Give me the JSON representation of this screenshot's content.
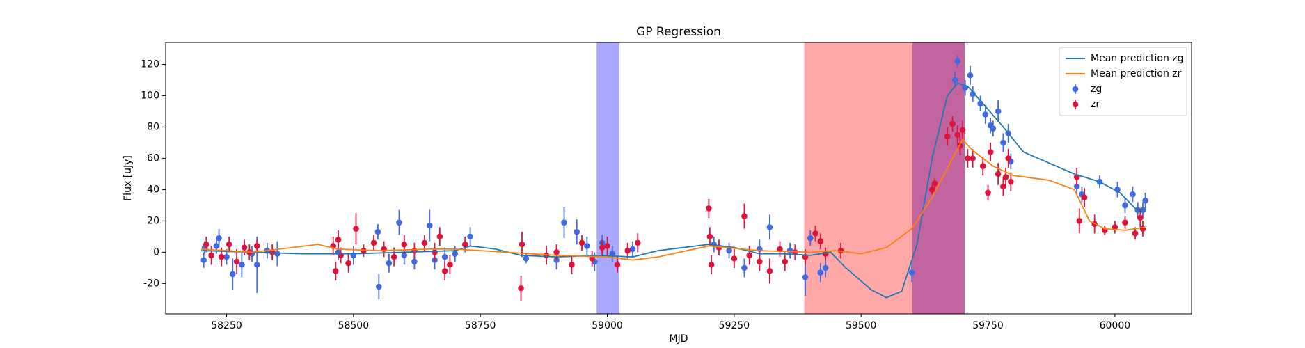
{
  "chart_data": {
    "type": "scatter",
    "title": "GP Regression",
    "x_label": "MJD",
    "y_label": "Flux [uJy]",
    "xlim": [
      58130,
      60151
    ],
    "ylim": [
      -39.4,
      134
    ],
    "xticks": [
      58250,
      58500,
      58750,
      59000,
      59250,
      59500,
      59750,
      60000
    ],
    "yticks": [
      -20,
      0,
      20,
      40,
      60,
      80,
      100,
      120
    ],
    "legend": "upper right",
    "spans": [
      {
        "start": 58979,
        "end": 59024,
        "color": "#a8a8ff"
      },
      {
        "start": 59388,
        "end": 59601,
        "color": "#ffa8a8"
      },
      {
        "start": 59601,
        "end": 59704,
        "color": "#c264a0"
      }
    ],
    "series": [
      {
        "name": "Mean prediction zg",
        "type": "line",
        "color": "#1f77b4",
        "x": [
          58200,
          58300,
          58400,
          58500,
          58600,
          58700,
          58730,
          58780,
          58830,
          58900,
          58980,
          59050,
          59100,
          59200,
          59250,
          59300,
          59350,
          59400,
          59440,
          59470,
          59520,
          59550,
          59580,
          59610,
          59640,
          59670,
          59690,
          59710,
          59740,
          59780,
          59820,
          59870,
          59920,
          59970,
          60010,
          60040,
          60060
        ],
        "values": [
          1,
          0,
          -1,
          -1,
          0,
          1,
          4,
          2,
          -2,
          -3,
          -2,
          -3,
          1,
          5,
          3,
          -1,
          -1,
          -2,
          0,
          -10,
          -24,
          -29,
          -25,
          5,
          60,
          100,
          108,
          106,
          95,
          80,
          64,
          57,
          50,
          45,
          38,
          28,
          26
        ]
      },
      {
        "name": "Mean prediction zr",
        "type": "line",
        "color": "#ff7f0e",
        "x": [
          58200,
          58300,
          58380,
          58430,
          58470,
          58550,
          58650,
          58700,
          58800,
          58900,
          59000,
          59050,
          59100,
          59200,
          59300,
          59400,
          59450,
          59500,
          59550,
          59600,
          59640,
          59680,
          59700,
          59720,
          59760,
          59800,
          59870,
          59920,
          59950,
          59980,
          60020,
          60060
        ],
        "values": [
          2,
          0,
          3,
          5,
          2,
          1,
          2,
          2,
          0,
          -2,
          -3,
          -5,
          -3,
          4,
          1,
          0,
          1,
          -1,
          3,
          15,
          35,
          60,
          72,
          65,
          55,
          49,
          46,
          40,
          20,
          15,
          14,
          16
        ]
      },
      {
        "name": "zg",
        "type": "errorbar",
        "color": "#4169e1",
        "x": [
          58205,
          58207,
          58235,
          58230,
          58250,
          58262,
          58280,
          58300,
          58310,
          58330,
          58350,
          58470,
          58500,
          58550,
          58548,
          58570,
          58590,
          58600,
          58620,
          58650,
          58660,
          58680,
          58700,
          58730,
          58840,
          58880,
          58900,
          58915,
          58940,
          58960,
          58975,
          58990,
          59010,
          59050,
          59210,
          59240,
          59270,
          59300,
          59320,
          59360,
          59390,
          59400,
          59420,
          59430,
          59600,
          59690,
          59685,
          59705,
          59715,
          59720,
          59735,
          59745,
          59755,
          59760,
          59770,
          59780,
          59790,
          59795,
          59925,
          59935,
          59970,
          60005,
          60020,
          60035,
          60045,
          60055,
          60060
        ],
        "values": [
          -5,
          3,
          9,
          4,
          -3,
          -14,
          -8,
          -1,
          -8,
          1,
          -1,
          0,
          -2,
          -22,
          13,
          -7,
          19,
          -2,
          -6,
          17,
          -5,
          -3,
          -1,
          10,
          -4,
          -2,
          -5,
          19,
          13,
          4,
          -6,
          6,
          -1,
          2,
          5,
          1,
          -10,
          2,
          16,
          1,
          -16,
          9,
          -13,
          -10,
          -13,
          122,
          110,
          105,
          113,
          101,
          95,
          88,
          81,
          79,
          90,
          70,
          76,
          58,
          42,
          37,
          45,
          40,
          30,
          37,
          27,
          27,
          33
        ],
        "errors": [
          5,
          4,
          6,
          5,
          5,
          10,
          8,
          5,
          18,
          5,
          8,
          5,
          6,
          8,
          5,
          6,
          8,
          6,
          5,
          10,
          6,
          6,
          5,
          6,
          3,
          6,
          6,
          10,
          8,
          6,
          6,
          5,
          5,
          5,
          5,
          5,
          6,
          6,
          8,
          5,
          12,
          5,
          6,
          6,
          6,
          4,
          5,
          5,
          6,
          5,
          5,
          6,
          5,
          5,
          7,
          6,
          6,
          5,
          5,
          5,
          4,
          5,
          5,
          5,
          5,
          5,
          5
        ]
      },
      {
        "name": "zr",
        "type": "errorbar",
        "color": "#dc143c",
        "x": [
          58210,
          58220,
          58240,
          58255,
          58270,
          58285,
          58295,
          58310,
          58340,
          58460,
          58465,
          58470,
          58475,
          58490,
          58505,
          58520,
          58540,
          58560,
          58580,
          58600,
          58620,
          58640,
          58660,
          58670,
          58680,
          58690,
          58720,
          58830,
          58832,
          58880,
          58900,
          58930,
          58950,
          58970,
          58990,
          59000,
          59020,
          59040,
          59060,
          59200,
          59202,
          59205,
          59220,
          59250,
          59270,
          59280,
          59300,
          59320,
          59340,
          59350,
          59370,
          59390,
          59410,
          59420,
          59430,
          59460,
          59640,
          59645,
          59670,
          59680,
          59690,
          59695,
          59700,
          59710,
          59720,
          59740,
          59750,
          59755,
          59770,
          59780,
          59785,
          59790,
          59795,
          59925,
          59930,
          59940,
          59960,
          59980,
          60000,
          60020,
          60040,
          60050,
          60055
        ],
        "values": [
          5,
          -2,
          -3,
          5,
          -6,
          3,
          0,
          4,
          0,
          4,
          -12,
          8,
          -2,
          -7,
          15,
          1,
          6,
          2,
          -3,
          5,
          1,
          6,
          0,
          10,
          -12,
          -8,
          5,
          -23,
          5,
          -2,
          0,
          -8,
          6,
          -4,
          3,
          4,
          -8,
          1,
          6,
          28,
          10,
          -8,
          3,
          -4,
          23,
          -2,
          -6,
          -12,
          2,
          -6,
          0,
          -3,
          12,
          7,
          -1,
          1,
          40,
          44,
          74,
          82,
          75,
          68,
          78,
          60,
          60,
          55,
          38,
          64,
          50,
          42,
          48,
          60,
          45,
          48,
          20,
          35,
          18,
          14,
          16,
          19,
          12,
          22,
          15
        ],
        "errors": [
          5,
          6,
          6,
          5,
          8,
          5,
          5,
          4,
          5,
          6,
          6,
          6,
          5,
          6,
          10,
          4,
          5,
          5,
          6,
          6,
          5,
          5,
          6,
          6,
          6,
          6,
          5,
          8,
          8,
          6,
          5,
          6,
          5,
          5,
          5,
          6,
          5,
          5,
          6,
          6,
          6,
          6,
          5,
          6,
          8,
          6,
          6,
          8,
          5,
          6,
          5,
          5,
          5,
          5,
          4,
          5,
          3,
          3,
          6,
          5,
          6,
          6,
          6,
          6,
          6,
          6,
          5,
          6,
          7,
          6,
          6,
          6,
          6,
          6,
          8,
          6,
          6,
          3,
          4,
          4,
          4,
          6,
          5
        ]
      }
    ]
  }
}
